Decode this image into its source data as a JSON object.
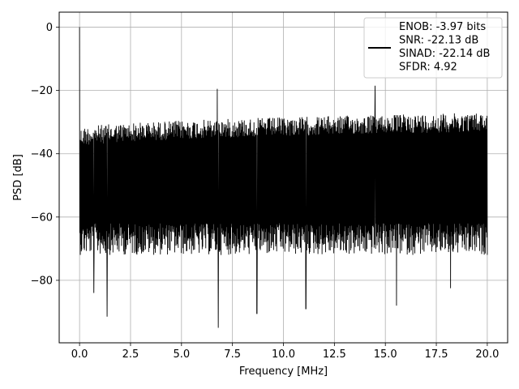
{
  "chart_data": {
    "type": "line",
    "title": "",
    "xlabel": "Frequency [MHz]",
    "ylabel": "PSD [dB]",
    "xlim": [
      -0.999,
      20.999
    ],
    "ylim": [
      -99.75,
      4.75
    ],
    "xticks": [
      0.0,
      2.5,
      5.0,
      7.5,
      10.0,
      12.5,
      15.0,
      17.5,
      20.0
    ],
    "xtick_labels": [
      "0.0",
      "2.5",
      "5.0",
      "7.5",
      "10.0",
      "12.5",
      "15.0",
      "17.5",
      "20.0"
    ],
    "yticks": [
      0,
      -20,
      -40,
      -60,
      -80
    ],
    "ytick_labels": [
      "0",
      "−20",
      "−40",
      "−60",
      "−80"
    ],
    "grid": true,
    "legend_position": "top-right",
    "series": [
      {
        "name": "ENOB: -3.97 bits\nSNR: -22.13 dB\nSINAD: -22.14 dB\nSFDR: 4.92",
        "color": "#000000",
        "description_of_envelope": {
          "x_range": [
            0.0,
            20.0
          ],
          "dc_peak": {
            "x": 0.0,
            "y": 0.0
          },
          "upper_envelope_start": -32,
          "upper_envelope_end": -27,
          "lower_envelope_typical": -70,
          "notable_spurs": [
            {
              "x": 6.75,
              "y": -19.5
            },
            {
              "x": 14.5,
              "y": -18.5
            },
            {
              "x": 6.8,
              "y": -95
            },
            {
              "x": 1.35,
              "y": -91.5
            },
            {
              "x": 8.7,
              "y": -90.5
            },
            {
              "x": 11.1,
              "y": -89
            },
            {
              "x": 15.55,
              "y": -88
            },
            {
              "x": 0.7,
              "y": -84
            },
            {
              "x": 18.2,
              "y": -82.5
            }
          ]
        }
      }
    ]
  }
}
